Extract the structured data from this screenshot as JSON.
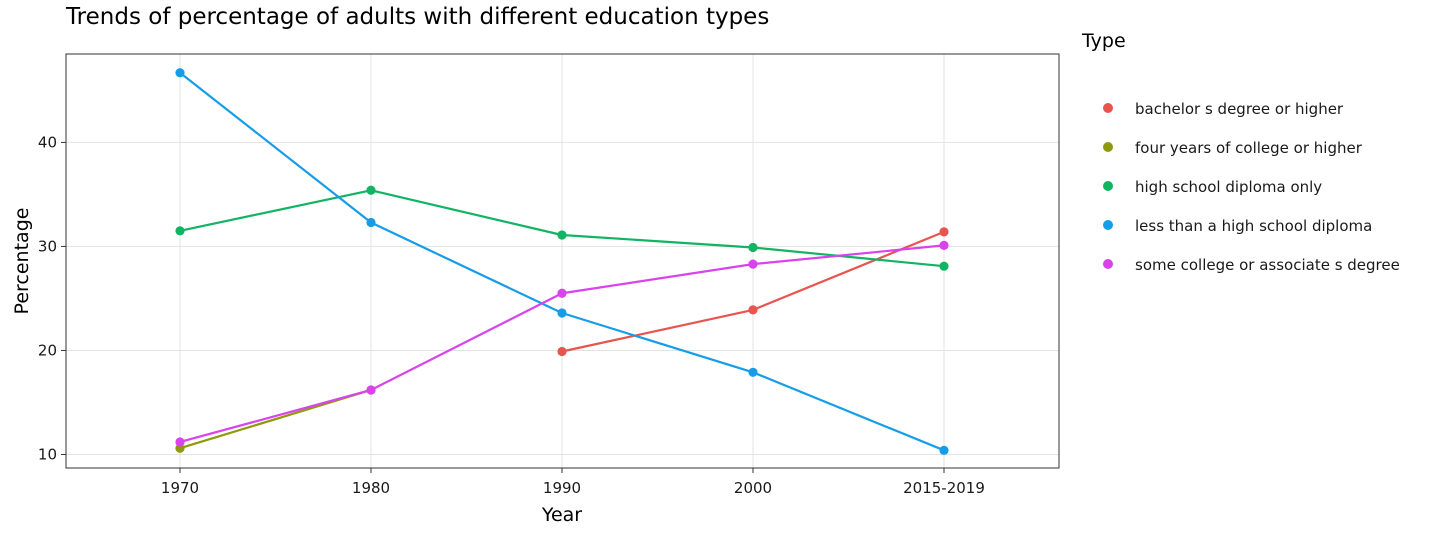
{
  "colors": {
    "background": "#ffffff",
    "grid": "#e3e3e3",
    "panel_border": "#333333"
  },
  "chart_data": {
    "type": "line",
    "title": "Trends of percentage of adults with different education types",
    "xlabel": "Year",
    "ylabel": "Percentage",
    "categories": [
      "1970",
      "1980",
      "1990",
      "2000",
      "2015-2019"
    ],
    "y_ticks": [
      10,
      20,
      30,
      40
    ],
    "ylim": [
      8.7,
      48.5
    ],
    "grid": true,
    "legend": {
      "title": "Type",
      "placement": "right"
    },
    "series": [
      {
        "name": "bachelor s degree or higher",
        "color": "#E8544E",
        "values": [
          null,
          null,
          19.9,
          23.9,
          31.4
        ]
      },
      {
        "name": "four years of college or higher",
        "color": "#8E9A0B",
        "values": [
          10.6,
          16.2,
          null,
          null,
          null
        ]
      },
      {
        "name": "high school diploma only",
        "color": "#12B463",
        "values": [
          31.5,
          35.4,
          31.1,
          29.9,
          28.1
        ]
      },
      {
        "name": "less than a high school diploma",
        "color": "#169DE8",
        "values": [
          46.7,
          32.3,
          23.6,
          17.9,
          10.4
        ]
      },
      {
        "name": "some college or associate s degree",
        "color": "#D943EC",
        "values": [
          11.2,
          16.2,
          25.5,
          28.3,
          30.1
        ]
      }
    ]
  }
}
